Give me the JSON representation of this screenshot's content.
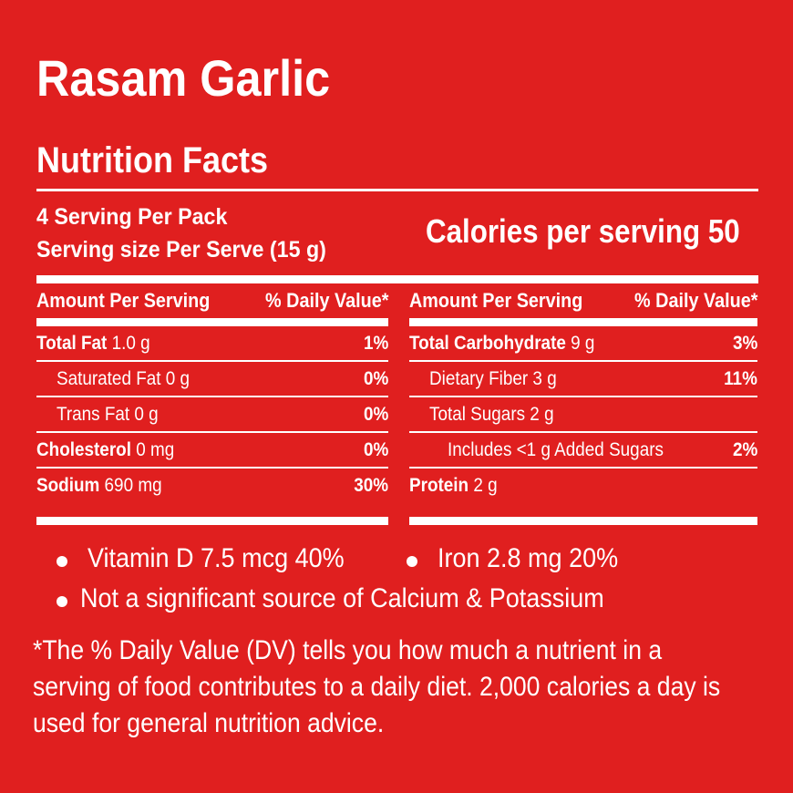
{
  "product_name": "Rasam Garlic",
  "heading": "Nutrition Facts",
  "servings_per_pack": "4 Serving Per Pack",
  "serving_size": "Serving size Per Serve (15 g)",
  "calories_text": "Calories per serving 50",
  "header": {
    "amount_label": "Amount Per Serving",
    "dv_label": "% Daily Value*"
  },
  "left_rows": [
    {
      "name": "Total Fat",
      "amount": " 1.0 g",
      "dv": "1%"
    },
    {
      "name": "Saturated Fat 0 g",
      "amount": "",
      "dv": "0%"
    },
    {
      "name": "Trans Fat 0 g",
      "amount": "",
      "dv": "0%"
    },
    {
      "name": "Cholesterol",
      "amount": " 0 mg",
      "dv": "0%"
    },
    {
      "name": "Sodium",
      "amount": " 690 mg",
      "dv": "30%"
    }
  ],
  "right_rows": [
    {
      "name": "Total Carbohydrate",
      "amount": " 9 g",
      "dv": "3%"
    },
    {
      "name": "Dietary Fiber 3 g",
      "amount": "",
      "dv": "11%"
    },
    {
      "name": "Total Sugars 2 g",
      "amount": "",
      "dv": ""
    },
    {
      "name": "Includes <1 g Added Sugars",
      "amount": "",
      "dv": "2%"
    },
    {
      "name": "Protein",
      "amount": " 2 g",
      "dv": ""
    }
  ],
  "vitamin_d": "Vitamin D 7.5 mcg 40%",
  "iron": "Iron 2.8 mg 20%",
  "calcium_note": "Not a significant source of Calcium & Potassium",
  "footnote_lines": [
    "*The % Daily Value (DV) tells you how much a nutrient in a",
    "serving of food contributes to a daily diet. 2,000 calories a day is",
    "used for general nutrition advice."
  ]
}
